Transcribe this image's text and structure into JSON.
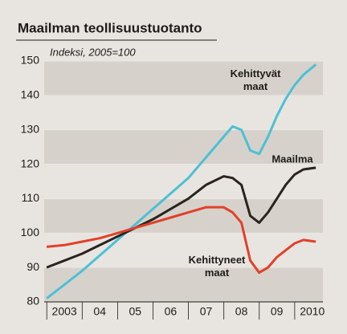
{
  "chart_data": {
    "type": "line",
    "title": "Maailman teollisuustuotanto",
    "subtitle": "Indeksi, 2005=100",
    "x": [
      2003,
      2003.5,
      2004,
      2004.5,
      2005,
      2005.5,
      2006,
      2006.5,
      2007,
      2007.5,
      2008,
      2008.25,
      2008.5,
      2008.75,
      2009,
      2009.25,
      2009.5,
      2009.75,
      2010,
      2010.25,
      2010.6
    ],
    "series": [
      {
        "name": "Kehittyvät maat",
        "color": "#4cc0d6",
        "values": [
          81,
          85,
          89,
          93.5,
          98,
          102.5,
          107,
          111.5,
          116,
          122,
          128,
          131,
          130,
          124,
          123,
          128,
          134,
          139,
          143,
          146,
          149
        ]
      },
      {
        "name": "Maailma",
        "color": "#2a2420",
        "values": [
          90,
          92,
          94,
          96.5,
          99,
          101.5,
          104,
          107,
          110,
          114,
          116.5,
          116,
          114,
          105,
          103,
          106,
          110,
          114,
          117,
          118.5,
          119
        ]
      },
      {
        "name": "Kehittyneet maat",
        "color": "#e2402a",
        "values": [
          96,
          96.5,
          97.5,
          98.5,
          100,
          101.5,
          103,
          104.5,
          106,
          107.5,
          107.5,
          106,
          103,
          92,
          88.5,
          90,
          93,
          95,
          97,
          98,
          97.5
        ]
      }
    ],
    "xlim": [
      2002.93,
      2010.8
    ],
    "xticks": [
      {
        "value": 2003.5,
        "label": "2003"
      },
      {
        "value": 2004.5,
        "label": "04"
      },
      {
        "value": 2005.5,
        "label": "05"
      },
      {
        "value": 2006.5,
        "label": "06"
      },
      {
        "value": 2007.5,
        "label": "07"
      },
      {
        "value": 2008.5,
        "label": "08"
      },
      {
        "value": 2009.5,
        "label": "09"
      },
      {
        "value": 2010.5,
        "label": "2010"
      }
    ],
    "ylim": [
      80,
      150
    ],
    "yticks": [
      80,
      90,
      100,
      110,
      120,
      130,
      140,
      150
    ],
    "grid": true
  }
}
